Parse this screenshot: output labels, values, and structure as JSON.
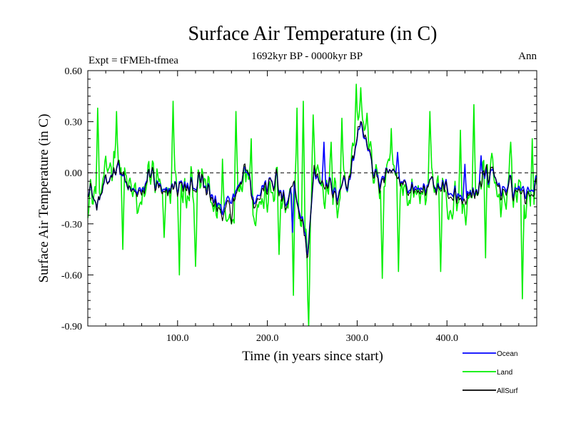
{
  "chart_data": {
    "type": "line",
    "title": "Surface Air Temperature (in C)",
    "subtitle_left": "Expt = tFMEh-tfmea",
    "subtitle_center": "1692kyr BP - 0000kyr BP",
    "subtitle_right": "Ann",
    "xlabel": "Time (in years since start)",
    "ylabel": "Surface Air Temperature (in C)",
    "xlim": [
      0,
      500
    ],
    "ylim": [
      -0.9,
      0.6
    ],
    "x_ticks": [
      100,
      200,
      300,
      400
    ],
    "x_tick_labels": [
      "100.0",
      "200.0",
      "300.0",
      "400.0"
    ],
    "y_ticks": [
      -0.9,
      -0.6,
      -0.3,
      0.0,
      0.3,
      0.6
    ],
    "y_tick_labels": [
      "-0.90",
      "-0.60",
      "-0.30",
      "0.00",
      "0.30",
      "0.60"
    ],
    "reference_line": 0.0,
    "n_points": 500,
    "series": [
      {
        "name": "Ocean",
        "color": "#0000ff",
        "description": "annual ocean-surface temperature anomaly, mostly between -0.35 and 0.15",
        "anchors": [
          [
            0,
            -0.08
          ],
          [
            10,
            -0.2
          ],
          [
            25,
            0.0
          ],
          [
            32,
            0.05
          ],
          [
            45,
            -0.1
          ],
          [
            60,
            -0.12
          ],
          [
            70,
            0.0
          ],
          [
            85,
            -0.15
          ],
          [
            95,
            -0.05
          ],
          [
            110,
            -0.1
          ],
          [
            125,
            -0.05
          ],
          [
            140,
            -0.15
          ],
          [
            150,
            -0.2
          ],
          [
            165,
            -0.1
          ],
          [
            175,
            0.05
          ],
          [
            185,
            -0.15
          ],
          [
            195,
            -0.1
          ],
          [
            210,
            -0.05
          ],
          [
            220,
            -0.18
          ],
          [
            230,
            -0.1
          ],
          [
            240,
            -0.3
          ],
          [
            245,
            -0.45
          ],
          [
            252,
            0.0
          ],
          [
            262,
            -0.05
          ],
          [
            275,
            -0.1
          ],
          [
            290,
            -0.05
          ],
          [
            300,
            0.2
          ],
          [
            305,
            0.28
          ],
          [
            315,
            0.05
          ],
          [
            325,
            -0.05
          ],
          [
            340,
            0.0
          ],
          [
            355,
            -0.08
          ],
          [
            370,
            -0.1
          ],
          [
            385,
            -0.05
          ],
          [
            400,
            -0.1
          ],
          [
            415,
            -0.15
          ],
          [
            430,
            -0.12
          ],
          [
            445,
            0.0
          ],
          [
            460,
            -0.1
          ],
          [
            475,
            -0.08
          ],
          [
            490,
            -0.12
          ],
          [
            500,
            -0.05
          ]
        ],
        "spikes": [
          [
            228,
            -0.35
          ],
          [
            244,
            -0.48
          ],
          [
            263,
            0.18
          ],
          [
            304,
            0.3
          ],
          [
            308,
            0.2
          ],
          [
            345,
            0.12
          ],
          [
            420,
            0.05
          ],
          [
            438,
            0.1
          ]
        ]
      },
      {
        "name": "Land",
        "color": "#00ee00",
        "description": "annual land-surface temperature anomaly, larger variance, range about -0.9 to 0.52",
        "anchors": [
          [
            0,
            -0.1
          ],
          [
            10,
            -0.15
          ],
          [
            25,
            0.05
          ],
          [
            32,
            0.1
          ],
          [
            45,
            -0.1
          ],
          [
            60,
            -0.2
          ],
          [
            70,
            0.05
          ],
          [
            85,
            -0.2
          ],
          [
            95,
            -0.05
          ],
          [
            110,
            -0.15
          ],
          [
            125,
            -0.05
          ],
          [
            140,
            -0.2
          ],
          [
            150,
            -0.3
          ],
          [
            165,
            -0.15
          ],
          [
            175,
            0.1
          ],
          [
            185,
            -0.2
          ],
          [
            195,
            -0.15
          ],
          [
            210,
            -0.05
          ],
          [
            220,
            -0.25
          ],
          [
            230,
            -0.1
          ],
          [
            240,
            -0.35
          ],
          [
            245,
            -0.5
          ],
          [
            252,
            0.05
          ],
          [
            262,
            -0.05
          ],
          [
            275,
            -0.15
          ],
          [
            290,
            0.0
          ],
          [
            300,
            0.25
          ],
          [
            305,
            0.35
          ],
          [
            315,
            0.05
          ],
          [
            325,
            -0.1
          ],
          [
            340,
            0.0
          ],
          [
            355,
            -0.1
          ],
          [
            370,
            -0.15
          ],
          [
            385,
            -0.05
          ],
          [
            400,
            -0.15
          ],
          [
            415,
            -0.2
          ],
          [
            430,
            -0.15
          ],
          [
            445,
            0.05
          ],
          [
            460,
            -0.15
          ],
          [
            475,
            -0.1
          ],
          [
            490,
            -0.2
          ],
          [
            500,
            -0.1
          ]
        ],
        "spikes": [
          [
            11,
            0.38
          ],
          [
            32,
            0.36
          ],
          [
            39,
            -0.45
          ],
          [
            85,
            -0.38
          ],
          [
            95,
            0.42
          ],
          [
            102,
            -0.6
          ],
          [
            120,
            -0.55
          ],
          [
            150,
            0.08
          ],
          [
            165,
            0.36
          ],
          [
            182,
            0.2
          ],
          [
            213,
            -0.48
          ],
          [
            229,
            -0.72
          ],
          [
            233,
            0.38
          ],
          [
            240,
            0.42
          ],
          [
            246,
            -0.9
          ],
          [
            251,
            0.34
          ],
          [
            271,
            0.18
          ],
          [
            283,
            0.32
          ],
          [
            299,
            0.52
          ],
          [
            304,
            0.5
          ],
          [
            311,
            0.35
          ],
          [
            328,
            -0.62
          ],
          [
            338,
            0.26
          ],
          [
            346,
            -0.58
          ],
          [
            381,
            0.36
          ],
          [
            393,
            -0.58
          ],
          [
            415,
            0.25
          ],
          [
            430,
            0.4
          ],
          [
            443,
            -0.5
          ],
          [
            471,
            0.18
          ],
          [
            484,
            -0.74
          ],
          [
            495,
            0.2
          ]
        ]
      },
      {
        "name": "AllSurf",
        "color": "#000000",
        "description": "global mean surface temperature anomaly, closely tracks Ocean with slightly larger amplitude",
        "anchors": [
          [
            0,
            -0.08
          ],
          [
            10,
            -0.2
          ],
          [
            25,
            0.0
          ],
          [
            32,
            0.06
          ],
          [
            45,
            -0.1
          ],
          [
            60,
            -0.14
          ],
          [
            70,
            0.0
          ],
          [
            85,
            -0.17
          ],
          [
            95,
            -0.05
          ],
          [
            110,
            -0.12
          ],
          [
            125,
            -0.05
          ],
          [
            140,
            -0.17
          ],
          [
            150,
            -0.23
          ],
          [
            165,
            -0.12
          ],
          [
            175,
            0.07
          ],
          [
            185,
            -0.17
          ],
          [
            195,
            -0.12
          ],
          [
            210,
            -0.05
          ],
          [
            220,
            -0.2
          ],
          [
            230,
            -0.1
          ],
          [
            240,
            -0.32
          ],
          [
            245,
            -0.47
          ],
          [
            252,
            0.02
          ],
          [
            262,
            -0.05
          ],
          [
            275,
            -0.12
          ],
          [
            290,
            -0.03
          ],
          [
            300,
            0.21
          ],
          [
            305,
            0.3
          ],
          [
            315,
            0.05
          ],
          [
            325,
            -0.07
          ],
          [
            340,
            0.0
          ],
          [
            355,
            -0.09
          ],
          [
            370,
            -0.12
          ],
          [
            385,
            -0.05
          ],
          [
            400,
            -0.12
          ],
          [
            415,
            -0.17
          ],
          [
            430,
            -0.13
          ],
          [
            445,
            0.02
          ],
          [
            460,
            -0.12
          ],
          [
            475,
            -0.09
          ],
          [
            490,
            -0.15
          ],
          [
            500,
            -0.07
          ]
        ],
        "spikes": [
          [
            160,
            -0.3
          ],
          [
            244,
            -0.5
          ],
          [
            304,
            0.3
          ]
        ]
      }
    ],
    "legend": {
      "position": "bottom-right",
      "entries": [
        "Ocean",
        "Land",
        "AllSurf"
      ]
    }
  }
}
